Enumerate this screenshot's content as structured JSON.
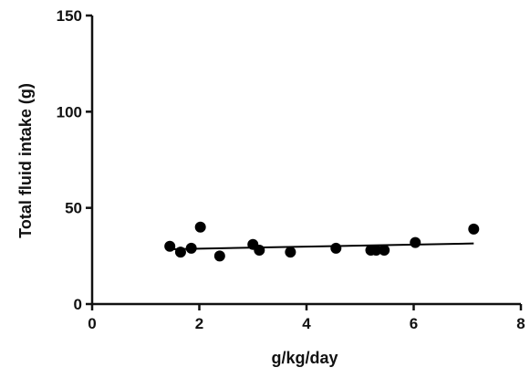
{
  "chart_data": {
    "type": "scatter",
    "title": "",
    "xlabel": "g/kg/day",
    "ylabel": "Total fluid intake (g)",
    "xlim": [
      0,
      8
    ],
    "ylim": [
      0,
      150
    ],
    "x_ticks": [
      0,
      2,
      4,
      6,
      8
    ],
    "y_ticks": [
      0,
      50,
      100,
      150
    ],
    "x_tick_labels": [
      "0",
      "2",
      "4",
      "6",
      "8"
    ],
    "y_tick_labels": [
      "0",
      "50",
      "100",
      "150"
    ],
    "grid": false,
    "legend": "none",
    "colors": {
      "axis": "#111111",
      "points": "#000000",
      "fit_line": "#000000"
    },
    "points": [
      {
        "x": 1.45,
        "y": 30
      },
      {
        "x": 1.65,
        "y": 27
      },
      {
        "x": 1.85,
        "y": 29
      },
      {
        "x": 2.02,
        "y": 40
      },
      {
        "x": 2.38,
        "y": 25
      },
      {
        "x": 3.0,
        "y": 31
      },
      {
        "x": 3.12,
        "y": 28
      },
      {
        "x": 3.7,
        "y": 27
      },
      {
        "x": 4.55,
        "y": 29
      },
      {
        "x": 5.2,
        "y": 28
      },
      {
        "x": 5.3,
        "y": 28
      },
      {
        "x": 5.45,
        "y": 28
      },
      {
        "x": 6.03,
        "y": 32
      },
      {
        "x": 7.12,
        "y": 39
      }
    ],
    "fit_line": {
      "x": [
        1.45,
        7.12
      ],
      "y": [
        28.5,
        31.5
      ]
    }
  }
}
